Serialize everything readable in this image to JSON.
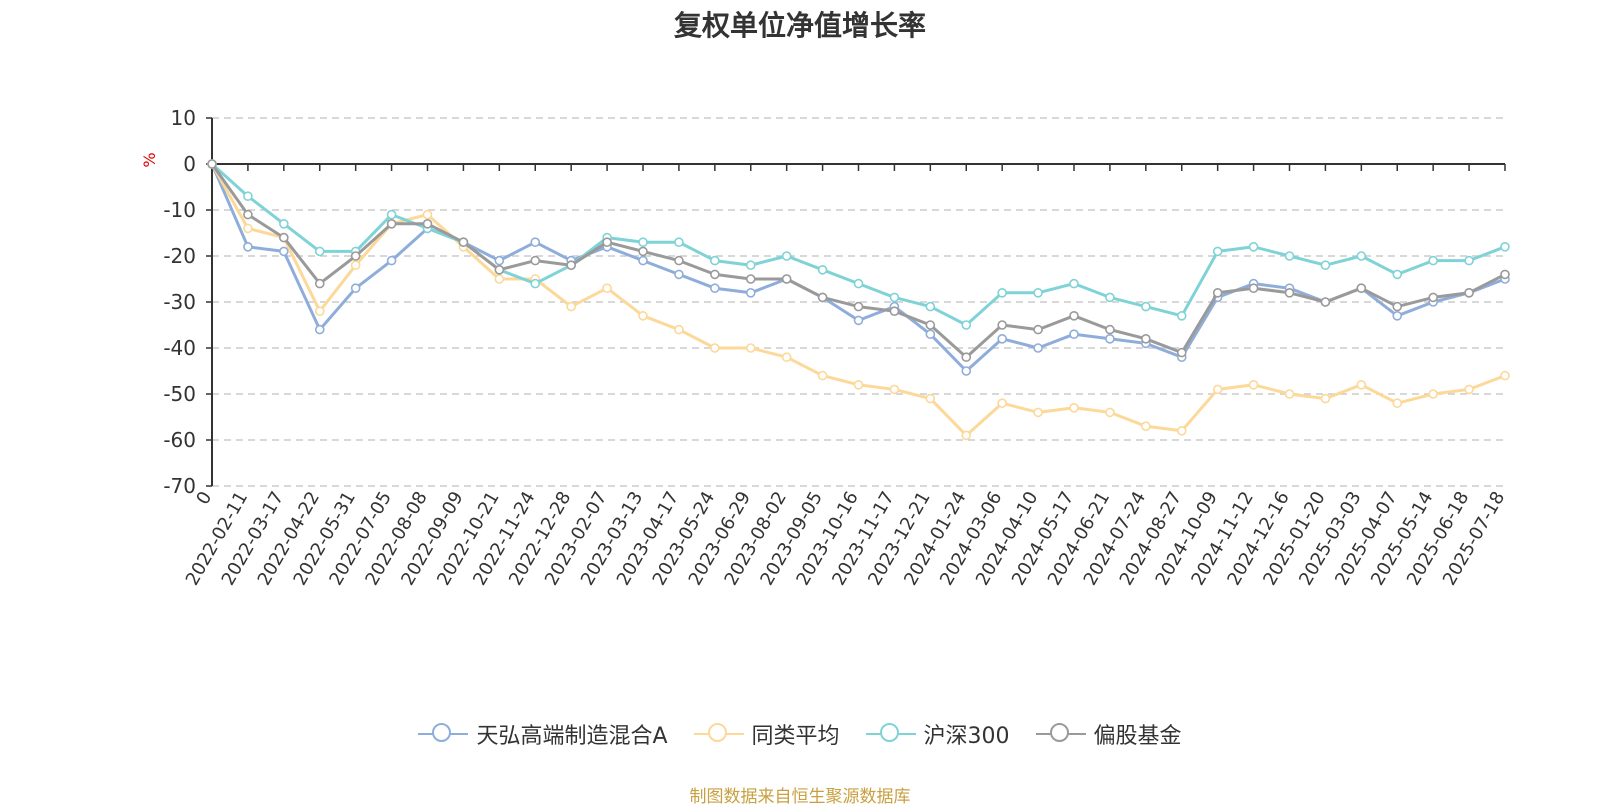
{
  "chart_data": {
    "type": "line",
    "title": "复权单位净值增长率",
    "ylabel": "%",
    "ylim": [
      -70,
      10
    ],
    "yticks": [
      10,
      0,
      -10,
      -20,
      -30,
      -40,
      -50,
      -60,
      -70
    ],
    "grid": true,
    "legend_position": "bottom",
    "x": [
      "0",
      "2022-02-11",
      "2022-03-17",
      "2022-04-22",
      "2022-05-31",
      "2022-07-05",
      "2022-08-08",
      "2022-09-09",
      "2022-10-21",
      "2022-11-24",
      "2022-12-28",
      "2023-02-07",
      "2023-03-13",
      "2023-04-17",
      "2023-05-24",
      "2023-06-29",
      "2023-08-02",
      "2023-09-05",
      "2023-10-16",
      "2023-11-17",
      "2023-12-21",
      "2024-01-24",
      "2024-03-06",
      "2024-04-10",
      "2024-05-17",
      "2024-06-21",
      "2024-07-24",
      "2024-08-27",
      "2024-10-09",
      "2024-11-12",
      "2024-12-16",
      "2025-01-20",
      "2025-03-03",
      "2025-04-07",
      "2025-05-14",
      "2025-06-18",
      "2025-07-18"
    ],
    "series": [
      {
        "name": "天弘高端制造混合A",
        "color": "#8fadda",
        "values": [
          0,
          -18,
          -19,
          -36,
          -27,
          -21,
          -14,
          -17,
          -21,
          -17,
          -21,
          -18,
          -21,
          -24,
          -27,
          -28,
          -25,
          -29,
          -34,
          -31,
          -37,
          -45,
          -38,
          -40,
          -37,
          -38,
          -39,
          -42,
          -29,
          -26,
          -27,
          -30,
          -27,
          -33,
          -30,
          -28,
          -25
        ]
      },
      {
        "name": "同类平均",
        "color": "#fcd899",
        "values": [
          0,
          -14,
          -16,
          -32,
          -22,
          -13,
          -11,
          -18,
          -25,
          -25,
          -31,
          -27,
          -33,
          -36,
          -40,
          -40,
          -42,
          -46,
          -48,
          -49,
          -51,
          -59,
          -52,
          -54,
          -53,
          -54,
          -57,
          -58,
          -49,
          -48,
          -50,
          -51,
          -48,
          -52,
          -50,
          -49,
          -46
        ]
      },
      {
        "name": "沪深300",
        "color": "#7fd3d6",
        "values": [
          0,
          -7,
          -13,
          -19,
          -19,
          -11,
          -14,
          -17,
          -23,
          -26,
          -22,
          -16,
          -17,
          -17,
          -21,
          -22,
          -20,
          -23,
          -26,
          -29,
          -31,
          -35,
          -28,
          -28,
          -26,
          -29,
          -31,
          -33,
          -19,
          -18,
          -20,
          -22,
          -20,
          -24,
          -21,
          -21,
          -18
        ]
      },
      {
        "name": "偏股基金",
        "color": "#9a9a9a",
        "values": [
          0,
          -11,
          -16,
          -26,
          -20,
          -13,
          -13,
          -17,
          -23,
          -21,
          -22,
          -17,
          -19,
          -21,
          -24,
          -25,
          -25,
          -29,
          -31,
          -32,
          -35,
          -42,
          -35,
          -36,
          -33,
          -36,
          -38,
          -41,
          -28,
          -27,
          -28,
          -30,
          -27,
          -31,
          -29,
          -28,
          -24
        ]
      }
    ]
  },
  "source_note": "制图数据来自恒生聚源数据库"
}
